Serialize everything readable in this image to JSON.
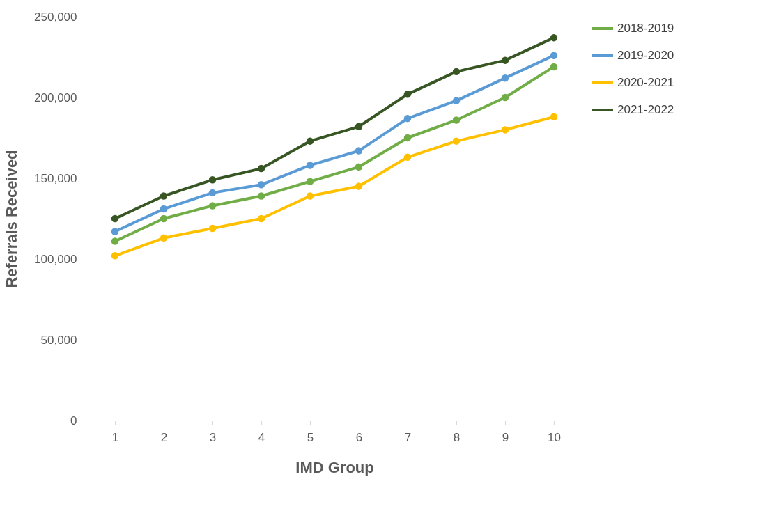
{
  "chart_data": {
    "type": "line",
    "xlabel": "IMD Group",
    "ylabel": "Referrals Received",
    "categories": [
      "1",
      "2",
      "3",
      "4",
      "5",
      "6",
      "7",
      "8",
      "9",
      "10"
    ],
    "series": [
      {
        "name": "2018-2019",
        "color": "#70ad47",
        "values": [
          111000,
          125000,
          133000,
          139000,
          148000,
          157000,
          175000,
          186000,
          200000,
          219000
        ]
      },
      {
        "name": "2019-2020",
        "color": "#5b9bd5",
        "values": [
          117000,
          131000,
          141000,
          146000,
          158000,
          167000,
          187000,
          198000,
          212000,
          226000
        ]
      },
      {
        "name": "2020-2021",
        "color": "#ffc000",
        "values": [
          102000,
          113000,
          119000,
          125000,
          139000,
          145000,
          163000,
          173000,
          180000,
          188000
        ]
      },
      {
        "name": "2021-2022",
        "color": "#375623",
        "values": [
          125000,
          139000,
          149000,
          156000,
          173000,
          182000,
          202000,
          216000,
          223000,
          237000
        ]
      }
    ],
    "ylim": [
      0,
      250000
    ],
    "yticks": [
      0,
      {
        "value": 50000,
        "label": "50,000"
      },
      {
        "value": 100000,
        "label": "100,000"
      },
      {
        "value": 150000,
        "label": "150,000"
      },
      {
        "value": 200000,
        "label": "200,000"
      },
      {
        "value": 250000,
        "label": "250,000"
      }
    ],
    "grid": false,
    "legend": "right",
    "marker": "circle",
    "line_style": "solid"
  }
}
